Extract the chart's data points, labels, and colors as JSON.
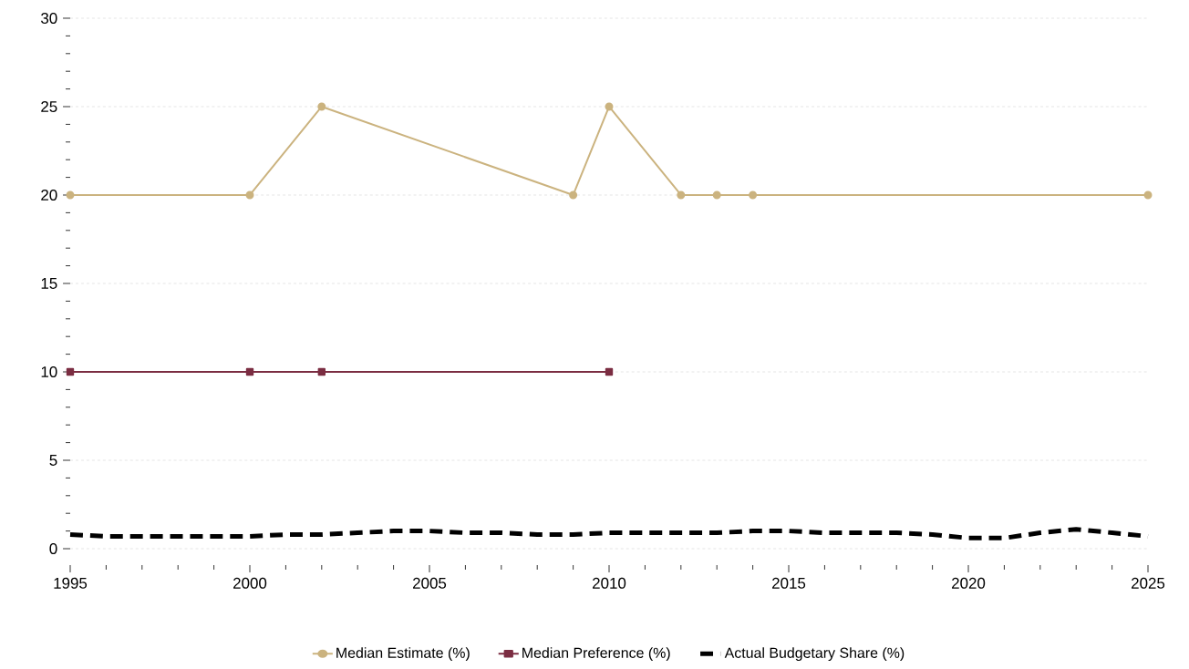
{
  "chart_data": {
    "type": "line",
    "xlim": [
      1995,
      2025
    ],
    "ylim": [
      0,
      30
    ],
    "xticks": [
      1995,
      2000,
      2005,
      2010,
      2015,
      2020,
      2025
    ],
    "yticks": [
      0,
      5,
      10,
      15,
      20,
      25,
      30
    ],
    "grid": "y",
    "legend": "bottom",
    "series": [
      {
        "name": "Median Estimate (%)",
        "color": "#cbb37f",
        "marker": "circle",
        "line_style": "solid",
        "x": [
          1995,
          2000,
          2002,
          2009,
          2010,
          2012,
          2013,
          2014,
          2025
        ],
        "values": [
          20,
          20,
          25,
          20,
          25,
          20,
          20,
          20,
          20
        ]
      },
      {
        "name": "Median Preference (%)",
        "color": "#7b2d42",
        "marker": "square",
        "line_style": "solid",
        "x": [
          1995,
          2000,
          2002,
          2010
        ],
        "values": [
          10,
          10,
          10,
          10
        ]
      },
      {
        "name": "Actual Budgetary Share (%)",
        "color": "#000000",
        "marker": "none",
        "line_style": "dashed",
        "x": [
          1995,
          1996,
          1997,
          1998,
          1999,
          2000,
          2001,
          2002,
          2003,
          2004,
          2005,
          2006,
          2007,
          2008,
          2009,
          2010,
          2011,
          2012,
          2013,
          2014,
          2015,
          2016,
          2017,
          2018,
          2019,
          2020,
          2021,
          2022,
          2023,
          2024,
          2025
        ],
        "values": [
          0.8,
          0.7,
          0.7,
          0.7,
          0.7,
          0.7,
          0.8,
          0.8,
          0.9,
          1.0,
          1.0,
          0.9,
          0.9,
          0.8,
          0.8,
          0.9,
          0.9,
          0.9,
          0.9,
          1.0,
          1.0,
          0.9,
          0.9,
          0.9,
          0.8,
          0.6,
          0.6,
          0.9,
          1.1,
          0.9,
          0.7
        ]
      }
    ]
  }
}
